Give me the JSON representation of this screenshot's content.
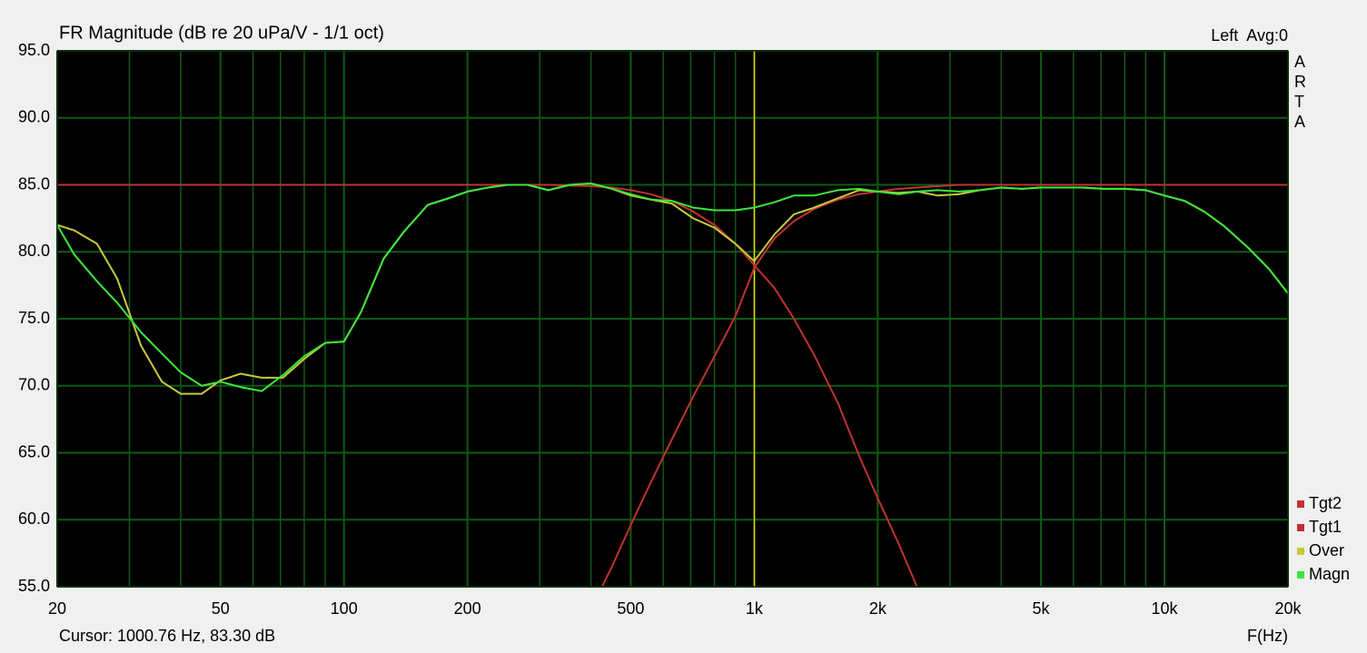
{
  "chart_data": {
    "type": "line",
    "title": "FR Magnitude (dB re 20 uPa/V - 1/1 oct)",
    "channel_label": "Left  Avg:0",
    "side_label": "ARTA",
    "x_label": "F(Hz)",
    "cursor": {
      "x": 1000.76,
      "label": "Cursor: 1000.76 Hz, 83.30 dB",
      "color": "#e6d200"
    },
    "x_scale": "log",
    "grid": true,
    "minor_grid": true,
    "grid_color": "#0f5a14",
    "background": "#000000",
    "legend": "lower right",
    "xlim": [
      20,
      20000
    ],
    "xticks": [
      20,
      50,
      100,
      200,
      500,
      {
        "value": 1000,
        "label": "1k"
      },
      {
        "value": 2000,
        "label": "2k"
      },
      {
        "value": 5000,
        "label": "5k"
      },
      {
        "value": 10000,
        "label": "10k"
      },
      {
        "value": 20000,
        "label": "20k"
      }
    ],
    "ylim": [
      55,
      95
    ],
    "yticks": [
      {
        "value": 55,
        "label": "55.0"
      },
      {
        "value": 60,
        "label": "60.0"
      },
      {
        "value": 65,
        "label": "65.0"
      },
      {
        "value": 70,
        "label": "70.0"
      },
      {
        "value": 75,
        "label": "75.0"
      },
      {
        "value": 80,
        "label": "80.0"
      },
      {
        "value": 85,
        "label": "85.0"
      },
      {
        "value": 90,
        "label": "90.0"
      },
      {
        "value": 95,
        "label": "95.0"
      }
    ],
    "x": [
      20,
      22,
      25,
      28,
      32,
      36,
      40,
      45,
      50,
      56,
      63,
      71,
      80,
      90,
      100,
      110,
      125,
      140,
      160,
      180,
      200,
      225,
      250,
      280,
      315,
      355,
      400,
      450,
      500,
      560,
      630,
      710,
      800,
      900,
      1000,
      1120,
      1250,
      1400,
      1600,
      1800,
      2000,
      2250,
      2500,
      2800,
      3150,
      3550,
      4000,
      4500,
      5000,
      5600,
      6300,
      7100,
      8000,
      9000,
      10000,
      11200,
      12500,
      14000,
      16000,
      18000,
      20000
    ],
    "series": [
      {
        "name": "Tgt2",
        "color": "#c03232",
        "values": [
          85,
          85,
          85,
          85,
          85,
          85,
          85,
          85,
          85,
          85,
          85,
          85,
          85,
          85,
          85,
          85,
          85,
          85,
          85,
          85,
          85,
          85,
          85,
          85,
          85,
          84.95,
          84.9,
          84.8,
          84.6,
          84.3,
          83.8,
          83.0,
          82.0,
          80.6,
          79.0,
          77.3,
          75.0,
          72.3,
          68.7,
          64.8,
          61.6,
          58.2,
          54.9,
          null,
          null,
          null,
          null,
          null,
          null,
          null,
          null,
          null,
          null,
          null,
          null,
          null,
          null,
          null,
          null,
          null,
          null
        ]
      },
      {
        "name": "Tgt1",
        "color": "#c03232",
        "values": [
          null,
          null,
          null,
          null,
          null,
          null,
          null,
          null,
          null,
          null,
          null,
          null,
          null,
          null,
          null,
          null,
          null,
          null,
          null,
          null,
          null,
          null,
          null,
          null,
          null,
          null,
          53.3,
          56.5,
          59.6,
          62.8,
          66.0,
          69.2,
          72.2,
          75.2,
          78.8,
          81.0,
          82.3,
          83.2,
          83.9,
          84.3,
          84.5,
          84.7,
          84.8,
          84.9,
          85,
          85,
          85,
          85,
          85,
          85,
          85,
          85,
          85,
          85,
          85,
          85,
          85,
          85,
          85,
          85,
          85
        ]
      },
      {
        "name": "Over",
        "color": "#c8c83c",
        "values": [
          82.0,
          81.6,
          80.6,
          78.0,
          73.0,
          70.3,
          69.4,
          69.4,
          70.4,
          70.9,
          70.6,
          70.6,
          72.0,
          73.2,
          73.3,
          75.5,
          79.5,
          81.5,
          83.5,
          84.0,
          84.5,
          84.8,
          85.0,
          85.0,
          84.6,
          85.0,
          85.1,
          84.7,
          84.2,
          83.9,
          83.6,
          82.5,
          81.8,
          80.6,
          79.3,
          81.3,
          82.8,
          83.3,
          84.0,
          84.6,
          84.5,
          84.4,
          84.5,
          84.2,
          84.3,
          84.6,
          84.8,
          84.7,
          84.8,
          84.8,
          84.8,
          84.7,
          84.7,
          84.6,
          84.2,
          83.8,
          83.0,
          81.9,
          80.3,
          78.7,
          76.9
        ]
      },
      {
        "name": "Magn",
        "color": "#3ce63c",
        "values": [
          82.0,
          79.8,
          77.8,
          76.2,
          74.0,
          72.4,
          71.0,
          70.0,
          70.3,
          69.9,
          69.6,
          70.8,
          72.2,
          73.2,
          73.3,
          75.5,
          79.5,
          81.5,
          83.5,
          84.0,
          84.5,
          84.8,
          85.0,
          85.0,
          84.6,
          85.0,
          85.1,
          84.7,
          84.3,
          83.9,
          83.8,
          83.3,
          83.1,
          83.1,
          83.3,
          83.7,
          84.2,
          84.2,
          84.6,
          84.7,
          84.5,
          84.3,
          84.5,
          84.6,
          84.5,
          84.6,
          84.8,
          84.7,
          84.8,
          84.8,
          84.8,
          84.7,
          84.7,
          84.6,
          84.2,
          83.8,
          83.0,
          81.9,
          80.3,
          78.7,
          76.9
        ]
      }
    ]
  }
}
